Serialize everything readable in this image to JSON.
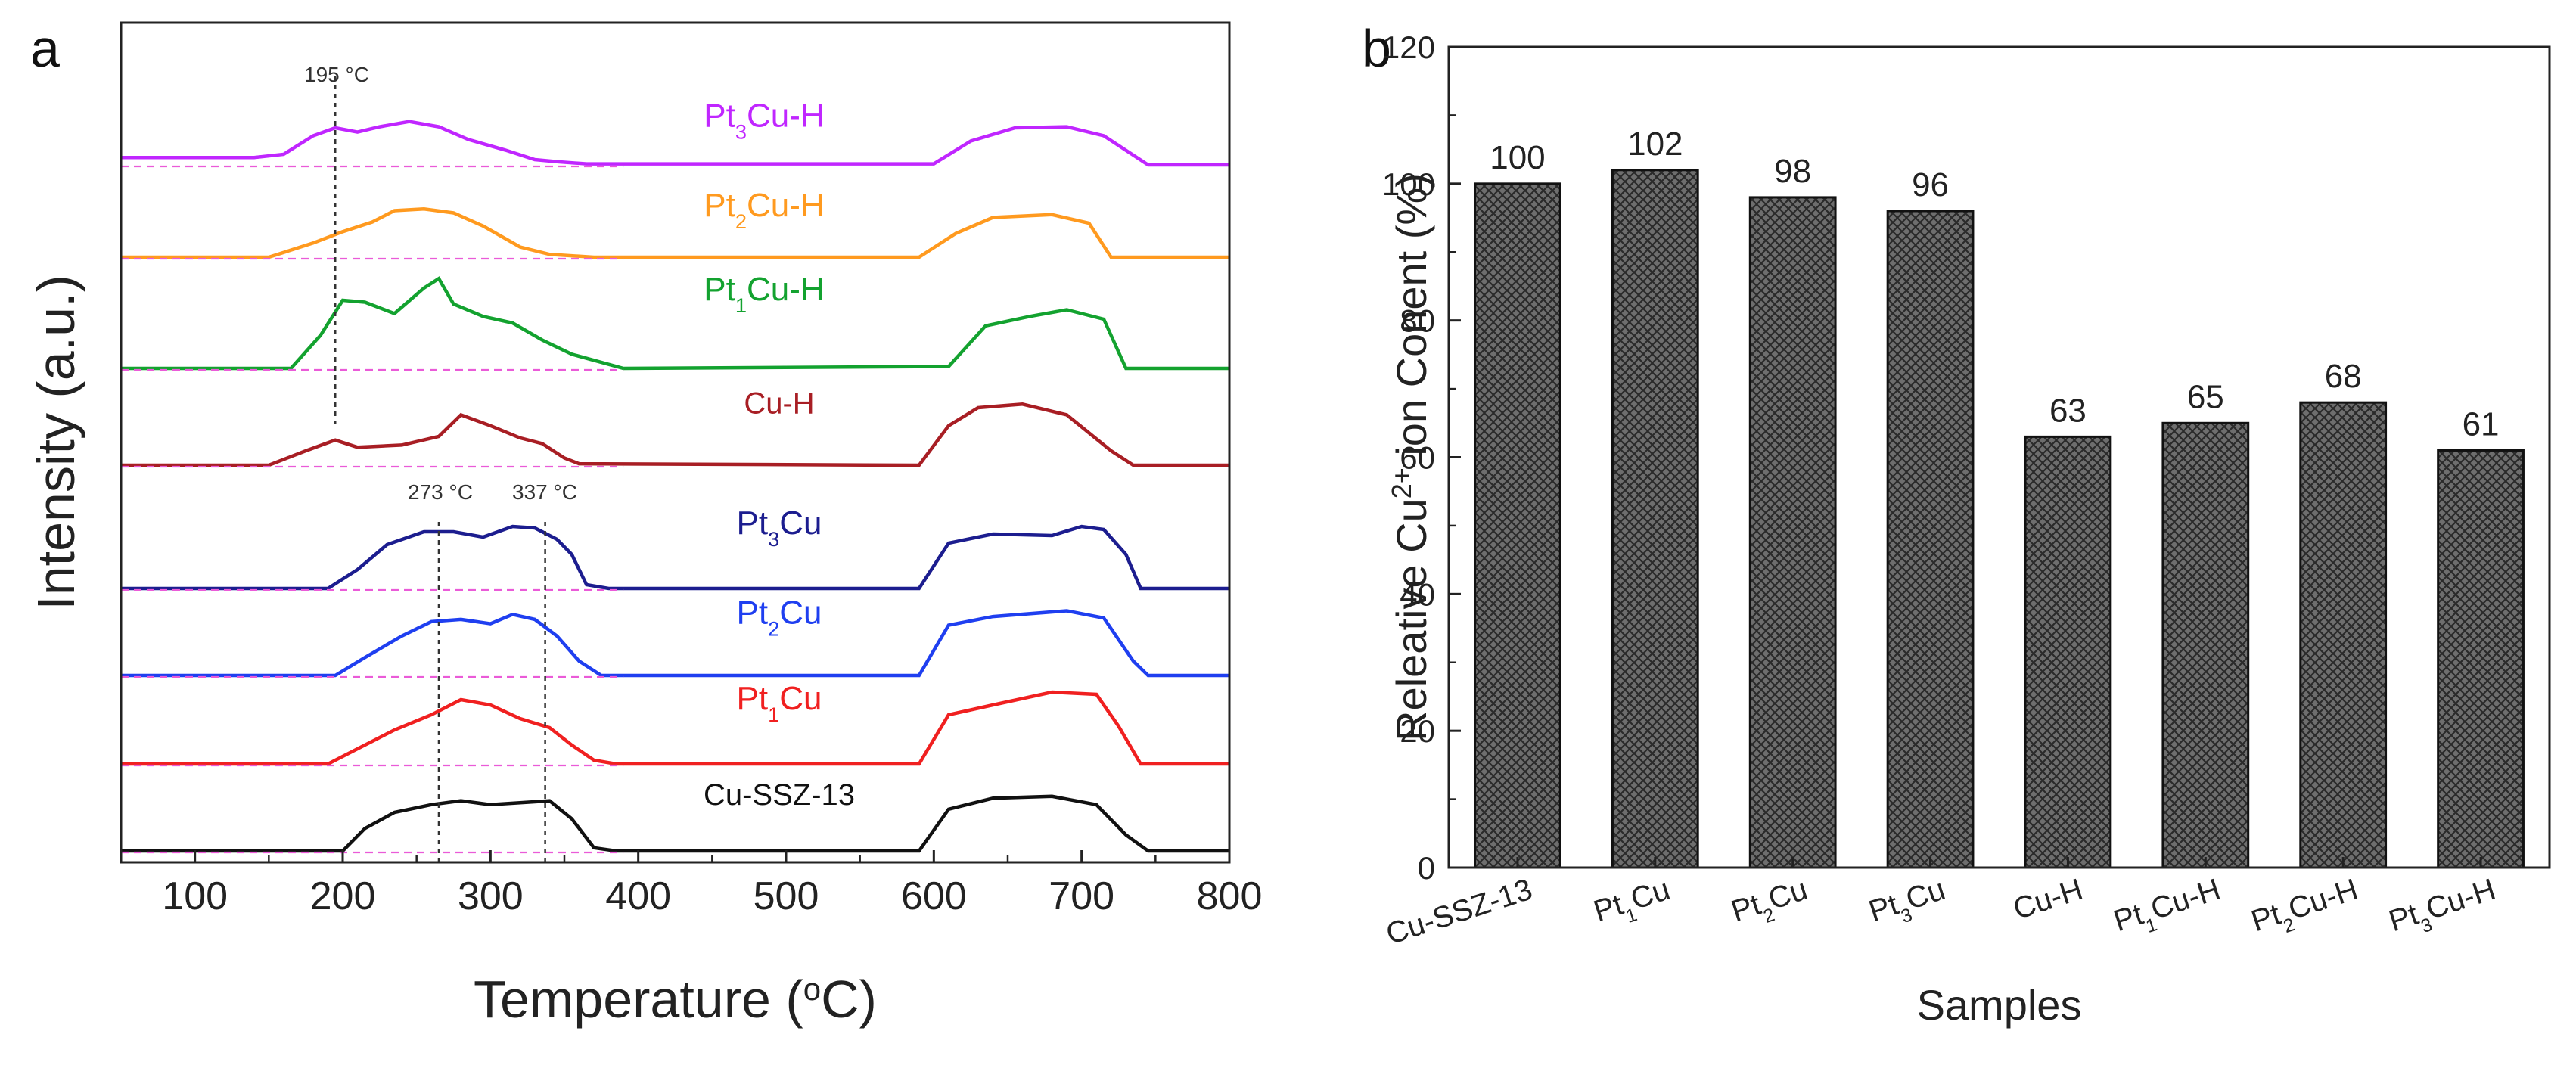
{
  "chart_data": [
    {
      "panel": "a",
      "type": "line",
      "xlabel": "Temperature (°C)",
      "xlabel_parts": {
        "pre": "Temperature (",
        "sup": "o",
        "post": "C)"
      },
      "ylabel": "Intensity (a.u.)",
      "xlim": [
        50,
        800
      ],
      "xticks": [
        100,
        200,
        300,
        400,
        500,
        600,
        700,
        800
      ],
      "annotations": [
        {
          "label": "195 °C",
          "x": 195
        },
        {
          "label": "273 °C",
          "x": 265
        },
        {
          "label": "337 °C",
          "x": 337
        }
      ],
      "series": [
        {
          "name": "Pt3Cu-H",
          "label_parts": [
            "Pt",
            "3",
            "Cu-H"
          ],
          "color": "#c026ff",
          "points": [
            [
              50,
              0.14
            ],
            [
              140,
              0.14
            ],
            [
              160,
              0.2
            ],
            [
              180,
              0.55
            ],
            [
              195,
              0.7
            ],
            [
              210,
              0.62
            ],
            [
              225,
              0.72
            ],
            [
              245,
              0.82
            ],
            [
              265,
              0.72
            ],
            [
              285,
              0.48
            ],
            [
              310,
              0.28
            ],
            [
              330,
              0.1
            ],
            [
              345,
              0.06
            ],
            [
              365,
              0.02
            ],
            [
              600,
              0.02
            ],
            [
              625,
              0.45
            ],
            [
              655,
              0.7
            ],
            [
              690,
              0.72
            ],
            [
              715,
              0.55
            ],
            [
              745,
              0.0
            ],
            [
              800,
              0.0
            ]
          ]
        },
        {
          "name": "Pt2Cu-H",
          "label_parts": [
            "Pt",
            "2",
            "Cu-H"
          ],
          "color": "#ff9a1f",
          "points": [
            [
              50,
              0.0
            ],
            [
              150,
              0.0
            ],
            [
              180,
              0.25
            ],
            [
              200,
              0.45
            ],
            [
              220,
              0.62
            ],
            [
              235,
              0.82
            ],
            [
              255,
              0.85
            ],
            [
              275,
              0.78
            ],
            [
              295,
              0.55
            ],
            [
              320,
              0.18
            ],
            [
              340,
              0.05
            ],
            [
              370,
              0.0
            ],
            [
              590,
              0.0
            ],
            [
              615,
              0.42
            ],
            [
              640,
              0.7
            ],
            [
              680,
              0.75
            ],
            [
              705,
              0.6
            ],
            [
              720,
              0.0
            ],
            [
              800,
              0.0
            ]
          ]
        },
        {
          "name": "Pt1Cu-H",
          "label_parts": [
            "Pt",
            "1",
            "Cu-H"
          ],
          "color": "#13a22f",
          "points": [
            [
              50,
              0.0
            ],
            [
              165,
              0.0
            ],
            [
              185,
              0.35
            ],
            [
              200,
              0.72
            ],
            [
              215,
              0.7
            ],
            [
              235,
              0.58
            ],
            [
              255,
              0.85
            ],
            [
              265,
              0.95
            ],
            [
              275,
              0.68
            ],
            [
              295,
              0.55
            ],
            [
              315,
              0.48
            ],
            [
              335,
              0.3
            ],
            [
              355,
              0.15
            ],
            [
              390,
              0.0
            ],
            [
              610,
              0.02
            ],
            [
              635,
              0.45
            ],
            [
              665,
              0.55
            ],
            [
              690,
              0.62
            ],
            [
              715,
              0.52
            ],
            [
              730,
              0.0
            ],
            [
              800,
              0.0
            ]
          ]
        },
        {
          "name": "Cu-H",
          "label_parts": [
            "",
            "",
            "Cu-H"
          ],
          "color": "#a81e24",
          "points": [
            [
              50,
              0.0
            ],
            [
              150,
              0.0
            ],
            [
              175,
              0.2
            ],
            [
              195,
              0.35
            ],
            [
              210,
              0.25
            ],
            [
              240,
              0.28
            ],
            [
              265,
              0.4
            ],
            [
              280,
              0.7
            ],
            [
              300,
              0.55
            ],
            [
              320,
              0.38
            ],
            [
              335,
              0.3
            ],
            [
              350,
              0.1
            ],
            [
              360,
              0.02
            ],
            [
              590,
              0.0
            ],
            [
              610,
              0.55
            ],
            [
              630,
              0.8
            ],
            [
              660,
              0.85
            ],
            [
              690,
              0.7
            ],
            [
              720,
              0.2
            ],
            [
              735,
              0.0
            ],
            [
              800,
              0.0
            ]
          ]
        },
        {
          "name": "Pt3Cu",
          "label_parts": [
            "Pt",
            "3",
            "Cu"
          ],
          "color": "#1c1d8f",
          "points": [
            [
              50,
              0.0
            ],
            [
              190,
              0.0
            ],
            [
              210,
              0.25
            ],
            [
              230,
              0.58
            ],
            [
              255,
              0.75
            ],
            [
              275,
              0.75
            ],
            [
              295,
              0.68
            ],
            [
              315,
              0.82
            ],
            [
              330,
              0.8
            ],
            [
              345,
              0.65
            ],
            [
              355,
              0.45
            ],
            [
              365,
              0.05
            ],
            [
              380,
              0.0
            ],
            [
              590,
              0.0
            ],
            [
              610,
              0.6
            ],
            [
              640,
              0.72
            ],
            [
              680,
              0.7
            ],
            [
              700,
              0.82
            ],
            [
              715,
              0.78
            ],
            [
              730,
              0.45
            ],
            [
              740,
              0.0
            ],
            [
              800,
              0.0
            ]
          ]
        },
        {
          "name": "Pt2Cu",
          "label_parts": [
            "Pt",
            "2",
            "Cu"
          ],
          "color": "#1f3ff0",
          "points": [
            [
              50,
              0.0
            ],
            [
              195,
              0.0
            ],
            [
              215,
              0.25
            ],
            [
              240,
              0.55
            ],
            [
              260,
              0.75
            ],
            [
              280,
              0.78
            ],
            [
              300,
              0.72
            ],
            [
              315,
              0.85
            ],
            [
              330,
              0.78
            ],
            [
              345,
              0.55
            ],
            [
              360,
              0.2
            ],
            [
              375,
              0.0
            ],
            [
              590,
              0.0
            ],
            [
              610,
              0.7
            ],
            [
              640,
              0.82
            ],
            [
              690,
              0.9
            ],
            [
              715,
              0.8
            ],
            [
              735,
              0.2
            ],
            [
              745,
              0.0
            ],
            [
              800,
              0.0
            ]
          ]
        },
        {
          "name": "Pt1Cu",
          "label_parts": [
            "Pt",
            "1",
            "Cu"
          ],
          "color": "#f02020",
          "points": [
            [
              50,
              0.0
            ],
            [
              190,
              0.0
            ],
            [
              210,
              0.2
            ],
            [
              235,
              0.45
            ],
            [
              260,
              0.65
            ],
            [
              280,
              0.85
            ],
            [
              300,
              0.78
            ],
            [
              320,
              0.6
            ],
            [
              340,
              0.48
            ],
            [
              355,
              0.25
            ],
            [
              370,
              0.05
            ],
            [
              385,
              0.0
            ],
            [
              590,
              0.0
            ],
            [
              610,
              0.65
            ],
            [
              640,
              0.78
            ],
            [
              680,
              0.95
            ],
            [
              710,
              0.92
            ],
            [
              725,
              0.5
            ],
            [
              740,
              0.0
            ],
            [
              800,
              0.0
            ]
          ]
        },
        {
          "name": "Cu-SSZ-13",
          "label_parts": [
            "",
            "",
            "Cu-SSZ-13"
          ],
          "color": "#111111",
          "points": [
            [
              50,
              0.0
            ],
            [
              200,
              0.0
            ],
            [
              215,
              0.35
            ],
            [
              235,
              0.6
            ],
            [
              260,
              0.72
            ],
            [
              280,
              0.78
            ],
            [
              300,
              0.72
            ],
            [
              320,
              0.75
            ],
            [
              340,
              0.78
            ],
            [
              355,
              0.5
            ],
            [
              370,
              0.05
            ],
            [
              385,
              0.0
            ],
            [
              590,
              0.0
            ],
            [
              610,
              0.65
            ],
            [
              640,
              0.82
            ],
            [
              680,
              0.85
            ],
            [
              710,
              0.72
            ],
            [
              730,
              0.25
            ],
            [
              745,
              0.0
            ],
            [
              800,
              0.0
            ]
          ]
        }
      ]
    },
    {
      "panel": "b",
      "type": "bar",
      "xlabel": "Samples",
      "ylabel": "Releative Cu2+ ion Conent (%)",
      "ylabel_parts": {
        "pre": "Releative Cu",
        "sup": "2+",
        "post": " ion Conent (%)"
      },
      "ylim": [
        0,
        120
      ],
      "yticks": [
        0,
        20,
        40,
        60,
        80,
        100,
        120
      ],
      "categories": [
        "Cu-SSZ-13",
        "Pt1Cu",
        "Pt2Cu",
        "Pt3Cu",
        "Cu-H",
        "Pt1Cu-H",
        "Pt2Cu-H",
        "Pt3Cu-H"
      ],
      "category_parts": [
        [
          "Cu-SSZ-13",
          "",
          ""
        ],
        [
          "Pt",
          "1",
          "Cu"
        ],
        [
          "Pt",
          "2",
          "Cu"
        ],
        [
          "Pt",
          "3",
          "Cu"
        ],
        [
          "Cu-H",
          "",
          ""
        ],
        [
          "Pt",
          "1",
          "Cu-H"
        ],
        [
          "Pt",
          "2",
          "Cu-H"
        ],
        [
          "Pt",
          "3",
          "Cu-H"
        ]
      ],
      "values": [
        100,
        102,
        98,
        96,
        63,
        65,
        68,
        61
      ],
      "data_labels": [
        "100",
        "102",
        "98",
        "96",
        "63",
        "65",
        "68",
        "61"
      ],
      "bar_fill": "crosshatch-gray"
    }
  ],
  "panel_letters": {
    "a": "a",
    "b": "b"
  }
}
